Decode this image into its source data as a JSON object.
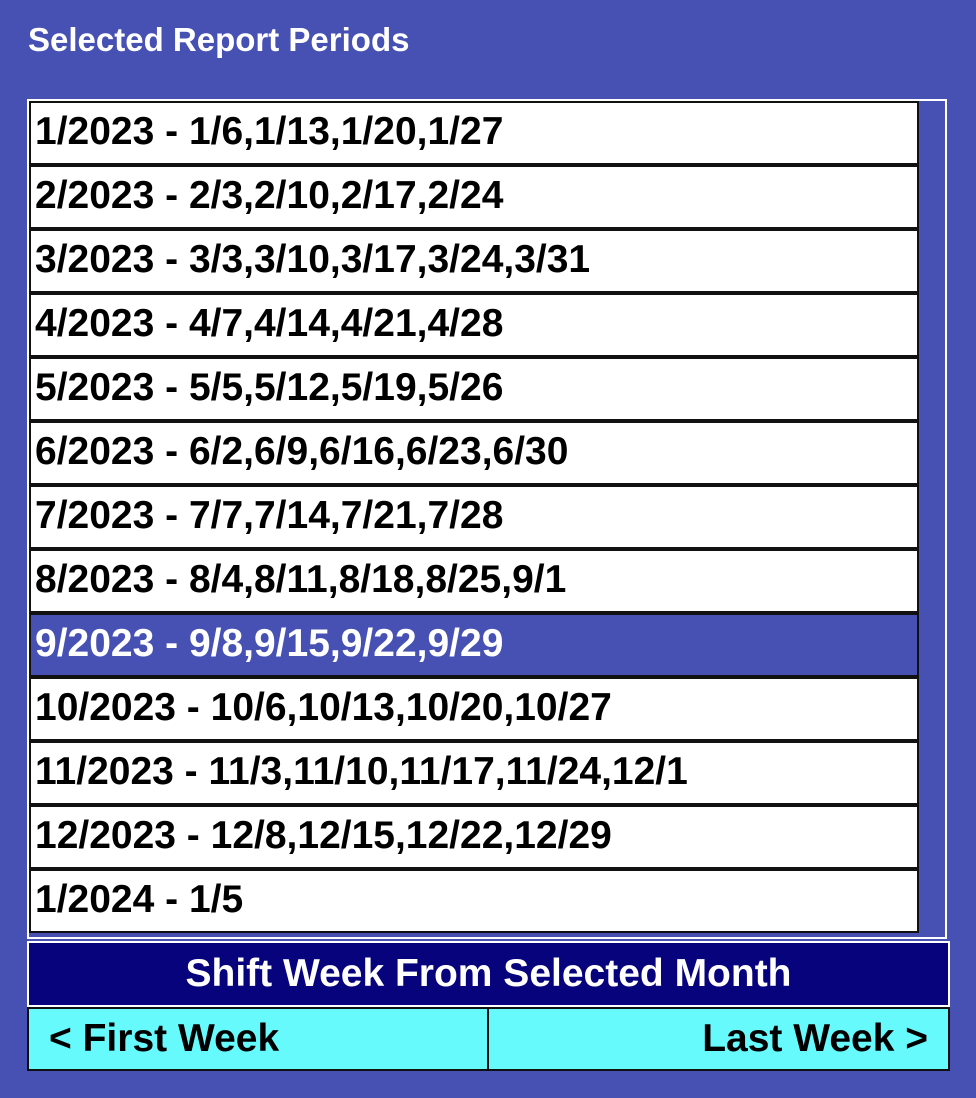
{
  "panel": {
    "title": "Selected Report Periods",
    "colors": {
      "background": "#4651b3",
      "item_background": "#ffffff",
      "selected_background": "#4651b3",
      "shift_label_background": "#06037c",
      "button_background": "#66fafd"
    }
  },
  "periods": [
    {
      "label": "1/2023 - 1/6,1/13,1/20,1/27",
      "selected": false
    },
    {
      "label": "2/2023 - 2/3,2/10,2/17,2/24",
      "selected": false
    },
    {
      "label": "3/2023 - 3/3,3/10,3/17,3/24,3/31",
      "selected": false
    },
    {
      "label": "4/2023 - 4/7,4/14,4/21,4/28",
      "selected": false
    },
    {
      "label": "5/2023 - 5/5,5/12,5/19,5/26",
      "selected": false
    },
    {
      "label": "6/2023 - 6/2,6/9,6/16,6/23,6/30",
      "selected": false
    },
    {
      "label": "7/2023 - 7/7,7/14,7/21,7/28",
      "selected": false
    },
    {
      "label": "8/2023 - 8/4,8/11,8/18,8/25,9/1",
      "selected": false
    },
    {
      "label": "9/2023 - 9/8,9/15,9/22,9/29",
      "selected": true
    },
    {
      "label": "10/2023 - 10/6,10/13,10/20,10/27",
      "selected": false
    },
    {
      "label": "11/2023 - 11/3,11/10,11/17,11/24,12/1",
      "selected": false
    },
    {
      "label": "12/2023 - 12/8,12/15,12/22,12/29",
      "selected": false
    },
    {
      "label": "1/2024 - 1/5",
      "selected": false
    }
  ],
  "shift": {
    "label": "Shift Week From Selected Month",
    "first_button": "< First Week",
    "last_button": "Last Week >"
  }
}
